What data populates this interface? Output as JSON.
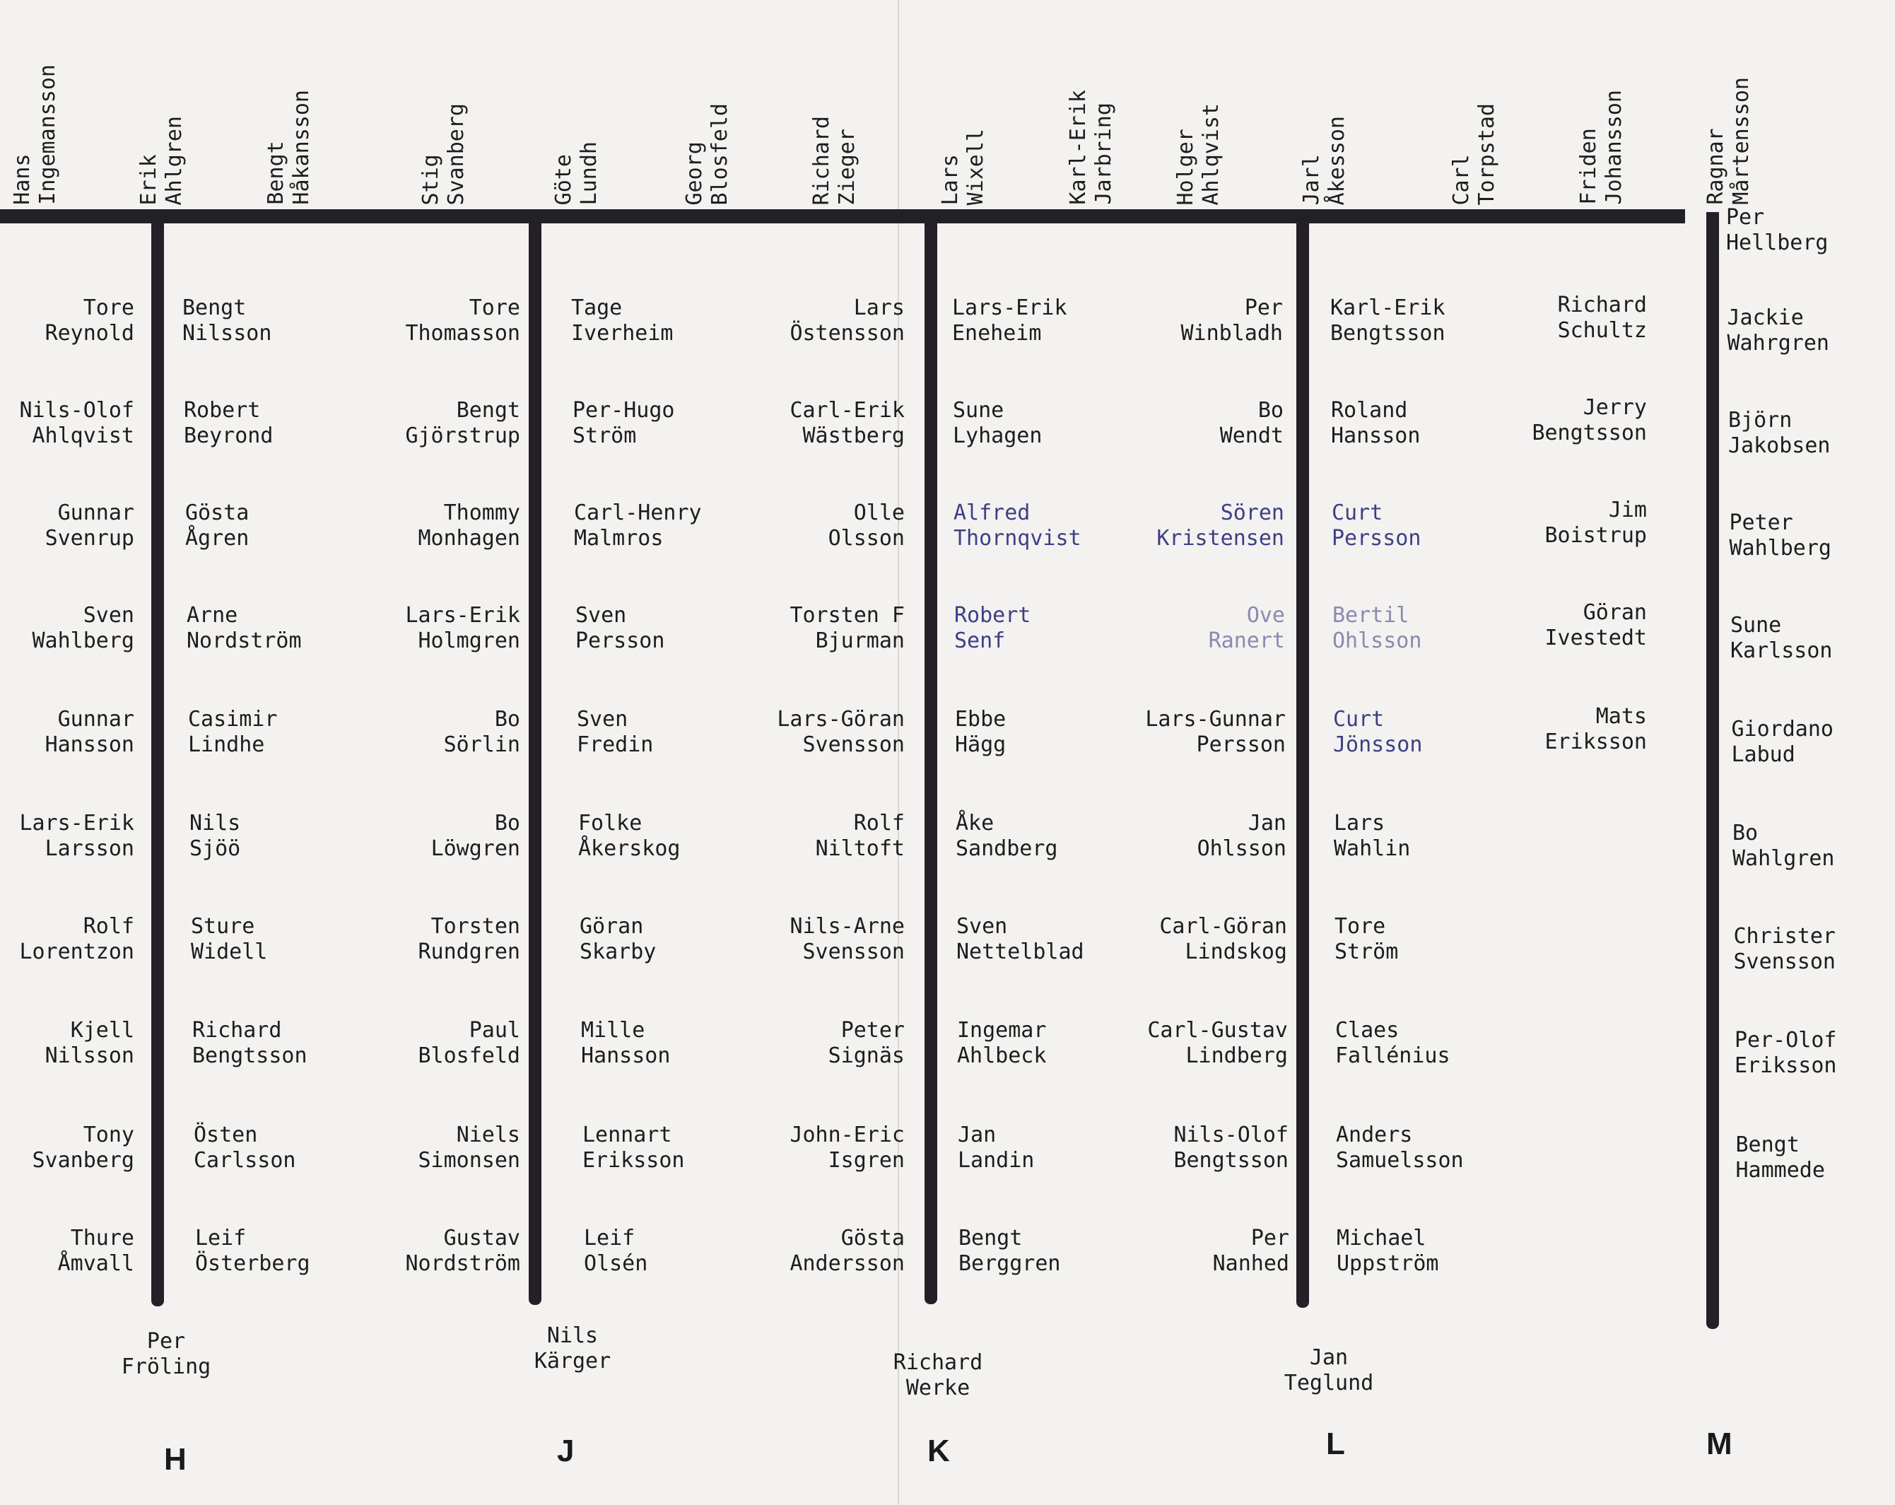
{
  "top_names": [
    [
      "Hans",
      "Ingemansson"
    ],
    [
      "Erik",
      "Ahlgren"
    ],
    [
      "Bengt",
      "Håkansson"
    ],
    [
      "Stig",
      "Svanberg"
    ],
    [
      "Göte",
      "Lundh"
    ],
    [
      "Georg",
      "Blosfeld"
    ],
    [
      "Richard",
      "Zieger"
    ],
    [
      "Lars",
      "Wixell"
    ],
    [
      "Karl-Erik",
      "Jarbring"
    ],
    [
      "Holger",
      "Ahlqvist"
    ],
    [
      "Jarl",
      "Åkesson"
    ],
    [
      "Carl",
      "Torpstad"
    ],
    [
      "Friden",
      "Johansson"
    ],
    [
      "Ragnar",
      "Mårtensson"
    ]
  ],
  "columns": [
    [
      "Tore|Reynold",
      "Nils-Olof|Ahlqvist",
      "Gunnar|Svenrup",
      "Sven|Wahlberg",
      "Gunnar|Hansson",
      "Lars-Erik|Larsson",
      "Rolf|Lorentzon",
      "Kjell|Nilsson",
      "Tony|Svanberg",
      "Thure|Åmvall"
    ],
    [
      "Bengt|Nilsson",
      "Robert|Beyrond",
      "Gösta|Ågren",
      "Arne|Nordström",
      "Casimir|Lindhe",
      "Nils|Sjöö",
      "Sture|Widell",
      "Richard|Bengtsson",
      "Östen|Carlsson",
      "Leif|Österberg"
    ],
    [
      "Tore|Thomasson",
      "Bengt|Gjörstrup",
      "Thommy|Monhagen",
      "Lars-Erik|Holmgren",
      "Bo|Sörlin",
      "Bo|Löwgren",
      "Torsten|Rundgren",
      "Paul|Blosfeld",
      "Niels|Simonsen",
      "Gustav|Nordström"
    ],
    [
      "Tage|Iverheim",
      "Per-Hugo|Ström",
      "Carl-Henry|Malmros",
      "Sven|Persson",
      "Sven|Fredin",
      "Folke|Åkerskog",
      "Göran|Skarby",
      "Mille|Hansson",
      "Lennart|Eriksson",
      "Leif|Olsén"
    ],
    [
      "Lars|Östensson",
      "Carl-Erik|Wästberg",
      "Olle|Olsson",
      "Torsten F|Bjurman",
      "Lars-Göran|Svensson",
      "Rolf|Niltoft",
      "Nils-Arne|Svensson",
      "Peter|Signäs",
      "John-Eric|Isgren",
      "Gösta|Andersson"
    ],
    [
      "Lars-Erik|Eneheim",
      "Sune|Lyhagen",
      "Alfred|Thornqvist",
      "Robert|Senf",
      "Ebbe|Hägg",
      "Åke|Sandberg",
      "Sven|Nettelblad",
      "Ingemar|Ahlbeck",
      "Jan|Landin",
      "Bengt|Berggren"
    ],
    [
      "Per|Winbladh",
      "Bo|Wendt",
      "Sören|Kristensen",
      "Ove|Ranert",
      "Lars-Gunnar|Persson",
      "Jan|Ohlsson",
      "Carl-Göran|Lindskog",
      "Carl-Gustav|Lindberg",
      "Nils-Olof|Bengtsson",
      "Per|Nanhed"
    ],
    [
      "Karl-Erik|Bengtsson",
      "Roland|Hansson",
      "Curt|Persson",
      "Bertil|Ohlsson",
      "Curt|Jönsson",
      "Lars|Wahlin",
      "Tore|Ström",
      "Claes|Fallénius",
      "Anders|Samuelsson",
      "Michael|Uppström"
    ],
    [
      "Richard|Schultz",
      "Jerry|Bengtsson",
      "Jim|Boistrup",
      "Göran|Ivestedt",
      "Mats|Eriksson"
    ],
    [
      "Per|Hellberg",
      "Jackie|Wahrgren",
      "Björn|Jakobsen",
      "Peter|Wahlberg",
      "Sune|Karlsson",
      "Giordano|Labud",
      "Bo|Wahlgren",
      "Christer|Svensson",
      "Per-Olof|Eriksson",
      "Bengt|Hammede"
    ]
  ],
  "bottom_names": [
    "Per|Fröling",
    "Nils|Kärger",
    "Richard|Werke",
    "Jan|Teglund"
  ],
  "letters": [
    "H",
    "J",
    "K",
    "L",
    "M"
  ],
  "colors": {
    "ink": "#1d1d1d",
    "bar": "#232128",
    "blue_ink": "#3d3f86",
    "paper": "#f3f2f0"
  }
}
